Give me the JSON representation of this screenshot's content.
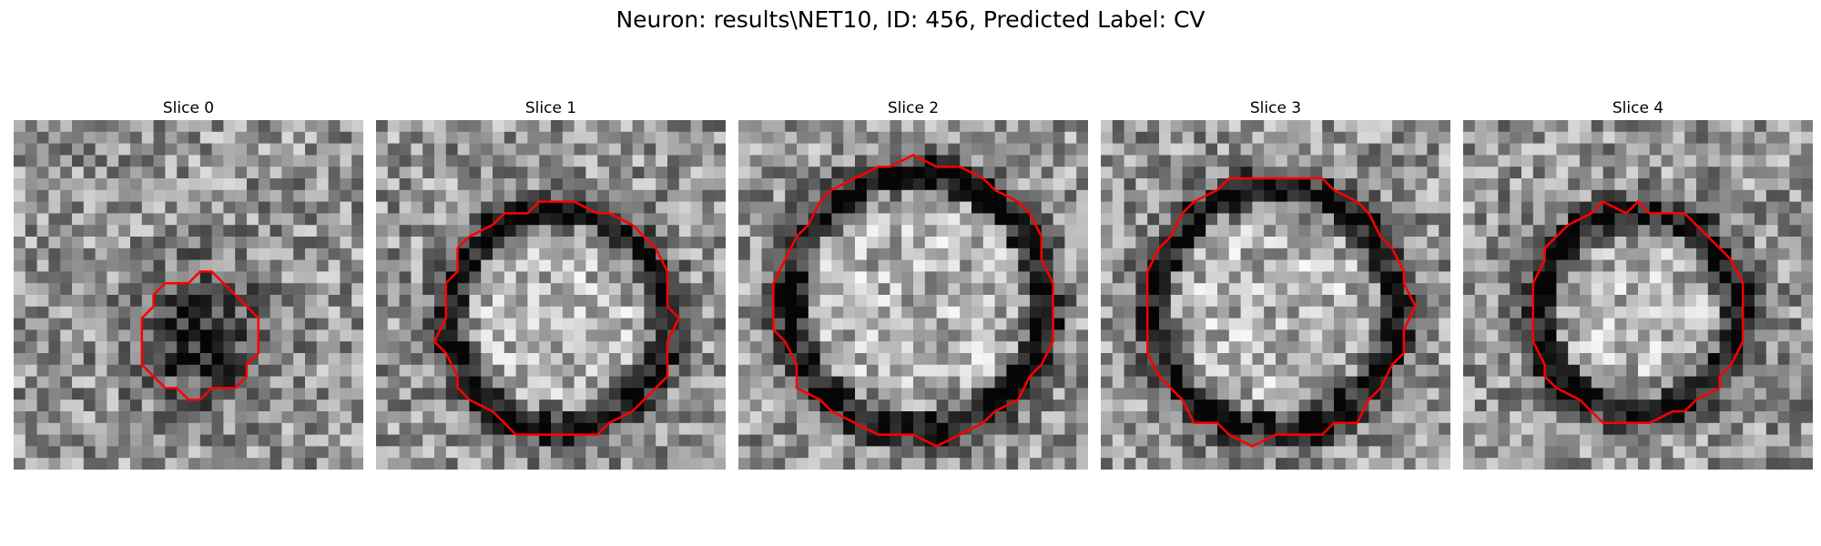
{
  "figure": {
    "title": "Neuron: results\\NET10, ID: 456, Predicted Label: CV",
    "contour_color": "#ff0000",
    "colormap": "gray"
  },
  "panels": [
    {
      "title": "Slice 0",
      "contour_radius": 0.17,
      "contour_center": [
        0.53,
        0.62
      ],
      "dark_ring": false
    },
    {
      "title": "Slice 1",
      "contour_radius": 0.34,
      "contour_center": [
        0.52,
        0.57
      ],
      "dark_ring": true
    },
    {
      "title": "Slice 2",
      "contour_radius": 0.4,
      "contour_center": [
        0.51,
        0.52
      ],
      "dark_ring": true
    },
    {
      "title": "Slice 3",
      "contour_radius": 0.38,
      "contour_center": [
        0.5,
        0.54
      ],
      "dark_ring": true
    },
    {
      "title": "Slice 4",
      "contour_radius": 0.31,
      "contour_center": [
        0.5,
        0.55
      ],
      "dark_ring": true
    }
  ]
}
